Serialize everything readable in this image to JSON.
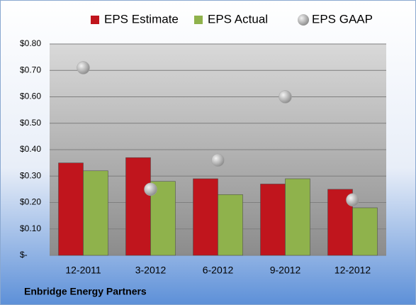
{
  "chart_data": {
    "type": "bar",
    "categories": [
      "12-2011",
      "3-2012",
      "6-2012",
      "9-2012",
      "12-2012"
    ],
    "series": [
      {
        "name": "EPS Estimate",
        "color": "#c0151d",
        "values": [
          0.35,
          0.37,
          0.29,
          0.27,
          0.25
        ]
      },
      {
        "name": "EPS Actual",
        "color": "#8fb24c",
        "values": [
          0.32,
          0.28,
          0.23,
          0.29,
          0.18
        ]
      },
      {
        "name": "EPS GAAP",
        "color": "#a6a6a6",
        "marker": "circle",
        "values": [
          0.71,
          0.25,
          0.36,
          0.6,
          0.21
        ]
      }
    ],
    "ylim": [
      0,
      0.8
    ],
    "yticks": [
      {
        "value": 0,
        "label": "$-"
      },
      {
        "value": 0.1,
        "label": "$0.10"
      },
      {
        "value": 0.2,
        "label": "$0.20"
      },
      {
        "value": 0.3,
        "label": "$0.30"
      },
      {
        "value": 0.4,
        "label": "$0.40"
      },
      {
        "value": 0.5,
        "label": "$0.50"
      },
      {
        "value": 0.6,
        "label": "$0.60"
      },
      {
        "value": 0.7,
        "label": "$0.70"
      },
      {
        "value": 0.8,
        "label": "$0.80"
      }
    ],
    "grid": true,
    "legend": "top",
    "caption": "Enbridge Energy Partners"
  }
}
